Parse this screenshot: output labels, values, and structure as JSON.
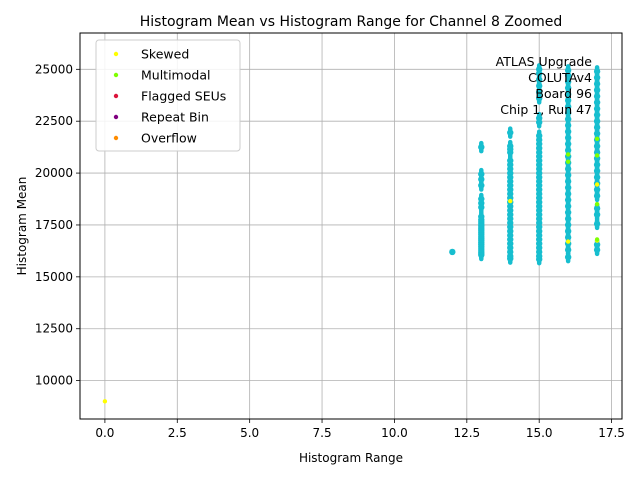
{
  "chart_data": {
    "type": "scatter",
    "title": "Histogram Mean vs Histogram Range for Channel 8 Zoomed",
    "xlabel": "Histogram Range",
    "ylabel": "Histogram Mean",
    "xlim": [
      -0.86,
      17.86
    ],
    "ylim": [
      8150,
      26750
    ],
    "xticks": [
      "0.0",
      "2.5",
      "5.0",
      "7.5",
      "10.0",
      "12.5",
      "15.0",
      "17.5"
    ],
    "xtick_values": [
      0,
      2.5,
      5,
      7.5,
      10,
      12.5,
      15,
      17.5
    ],
    "yticks": [
      "10000",
      "12500",
      "15000",
      "17500",
      "20000",
      "22500",
      "25000"
    ],
    "ytick_values": [
      10000,
      12500,
      15000,
      17500,
      20000,
      22500,
      25000
    ],
    "grid": true,
    "legend_position": "top-left",
    "annotation": [
      "ATLAS Upgrade",
      "COLUTAv4",
      "Board 96",
      "Chip 1, Run 47"
    ],
    "base_color": "#17becf",
    "legend": [
      {
        "name": "Skewed",
        "color": "#ffff00"
      },
      {
        "name": "Multimodal",
        "color": "#7fff00"
      },
      {
        "name": "Flagged SEUs",
        "color": "#dc143c"
      },
      {
        "name": "Repeat Bin",
        "color": "#800080"
      },
      {
        "name": "Overflow",
        "color": "#ff8c00"
      }
    ],
    "series": [
      {
        "color": "#17becf",
        "points": [
          [
            12,
            16200
          ],
          [
            13,
            16050
          ],
          [
            13,
            16150
          ],
          [
            13,
            16250
          ],
          [
            13,
            16350
          ],
          [
            13,
            16450
          ],
          [
            13,
            16550
          ],
          [
            13,
            16650
          ],
          [
            13,
            16750
          ],
          [
            13,
            16850
          ],
          [
            13,
            16950
          ],
          [
            13,
            17050
          ],
          [
            13,
            17150
          ],
          [
            13,
            17250
          ],
          [
            13,
            17350
          ],
          [
            13,
            17450
          ],
          [
            13,
            17550
          ],
          [
            13,
            17650
          ],
          [
            13,
            17750
          ],
          [
            13,
            17900
          ],
          [
            13,
            18350
          ],
          [
            13,
            18550
          ],
          [
            13,
            18750
          ],
          [
            13,
            19400
          ],
          [
            13,
            19700
          ],
          [
            13,
            19950
          ],
          [
            13,
            21250
          ],
          [
            14,
            15880
          ],
          [
            14,
            16000
          ],
          [
            14,
            16200
          ],
          [
            14,
            16400
          ],
          [
            14,
            16600
          ],
          [
            14,
            16800
          ],
          [
            14,
            17000
          ],
          [
            14,
            17200
          ],
          [
            14,
            17400
          ],
          [
            14,
            17600
          ],
          [
            14,
            17800
          ],
          [
            14,
            18000
          ],
          [
            14,
            18200
          ],
          [
            14,
            18400
          ],
          [
            14,
            18600
          ],
          [
            14,
            18800
          ],
          [
            14,
            19000
          ],
          [
            14,
            19200
          ],
          [
            14,
            19400
          ],
          [
            14,
            19600
          ],
          [
            14,
            19800
          ],
          [
            14,
            20000
          ],
          [
            14,
            20200
          ],
          [
            14,
            20400
          ],
          [
            14,
            20600
          ],
          [
            14,
            21000
          ],
          [
            14,
            21150
          ],
          [
            14,
            21300
          ],
          [
            14,
            21950
          ],
          [
            15,
            15850
          ],
          [
            15,
            16000
          ],
          [
            15,
            16200
          ],
          [
            15,
            16400
          ],
          [
            15,
            16600
          ],
          [
            15,
            16800
          ],
          [
            15,
            17000
          ],
          [
            15,
            17200
          ],
          [
            15,
            17400
          ],
          [
            15,
            17600
          ],
          [
            15,
            17800
          ],
          [
            15,
            18000
          ],
          [
            15,
            18200
          ],
          [
            15,
            18400
          ],
          [
            15,
            18600
          ],
          [
            15,
            18800
          ],
          [
            15,
            19000
          ],
          [
            15,
            19200
          ],
          [
            15,
            19400
          ],
          [
            15,
            19600
          ],
          [
            15,
            19800
          ],
          [
            15,
            20000
          ],
          [
            15,
            20200
          ],
          [
            15,
            20400
          ],
          [
            15,
            20600
          ],
          [
            15,
            20800
          ],
          [
            15,
            21000
          ],
          [
            15,
            21200
          ],
          [
            15,
            21400
          ],
          [
            15,
            21600
          ],
          [
            15,
            21800
          ],
          [
            15,
            22450
          ],
          [
            15,
            22650
          ],
          [
            15,
            23600
          ],
          [
            15,
            23900
          ],
          [
            15,
            24200
          ],
          [
            15,
            24500
          ],
          [
            15,
            24800
          ],
          [
            15,
            25000
          ],
          [
            16,
            15950
          ],
          [
            16,
            16300
          ],
          [
            16,
            16600
          ],
          [
            16,
            16900
          ],
          [
            16,
            17200
          ],
          [
            16,
            17500
          ],
          [
            16,
            17800
          ],
          [
            16,
            18100
          ],
          [
            16,
            18400
          ],
          [
            16,
            18700
          ],
          [
            16,
            19000
          ],
          [
            16,
            19300
          ],
          [
            16,
            19600
          ],
          [
            16,
            19900
          ],
          [
            16,
            20200
          ],
          [
            16,
            20500
          ],
          [
            16,
            20800
          ],
          [
            16,
            21100
          ],
          [
            16,
            21400
          ],
          [
            16,
            21700
          ],
          [
            16,
            22000
          ],
          [
            16,
            22300
          ],
          [
            16,
            22600
          ],
          [
            16,
            22900
          ],
          [
            16,
            23200
          ],
          [
            16,
            23500
          ],
          [
            16,
            23800
          ],
          [
            16,
            24100
          ],
          [
            16,
            24400
          ],
          [
            16,
            24700
          ],
          [
            16,
            24950
          ],
          [
            17,
            16300
          ],
          [
            17,
            16550
          ],
          [
            17,
            17550
          ],
          [
            17,
            18000
          ],
          [
            17,
            18300
          ],
          [
            17,
            18900
          ],
          [
            17,
            19200
          ],
          [
            17,
            19500
          ],
          [
            17,
            19800
          ],
          [
            17,
            20100
          ],
          [
            17,
            20400
          ],
          [
            17,
            20700
          ],
          [
            17,
            21000
          ],
          [
            17,
            21300
          ],
          [
            17,
            21600
          ],
          [
            17,
            21900
          ],
          [
            17,
            22200
          ],
          [
            17,
            22500
          ],
          [
            17,
            22800
          ],
          [
            17,
            23100
          ],
          [
            17,
            23400
          ],
          [
            17,
            23700
          ],
          [
            17,
            24000
          ],
          [
            17,
            24300
          ],
          [
            17,
            24600
          ],
          [
            17,
            24900
          ]
        ]
      },
      {
        "name": "Skewed",
        "color": "#ffff00",
        "points": [
          [
            0,
            9000
          ],
          [
            14,
            18650
          ],
          [
            16,
            16700
          ],
          [
            17,
            16750
          ],
          [
            17,
            19450
          ]
        ]
      },
      {
        "name": "Multimodal",
        "color": "#7fff00",
        "points": [
          [
            16,
            20900
          ],
          [
            16,
            20550
          ],
          [
            17,
            21650
          ],
          [
            17,
            20850
          ],
          [
            17,
            18500
          ],
          [
            17,
            16800
          ]
        ]
      }
    ]
  }
}
